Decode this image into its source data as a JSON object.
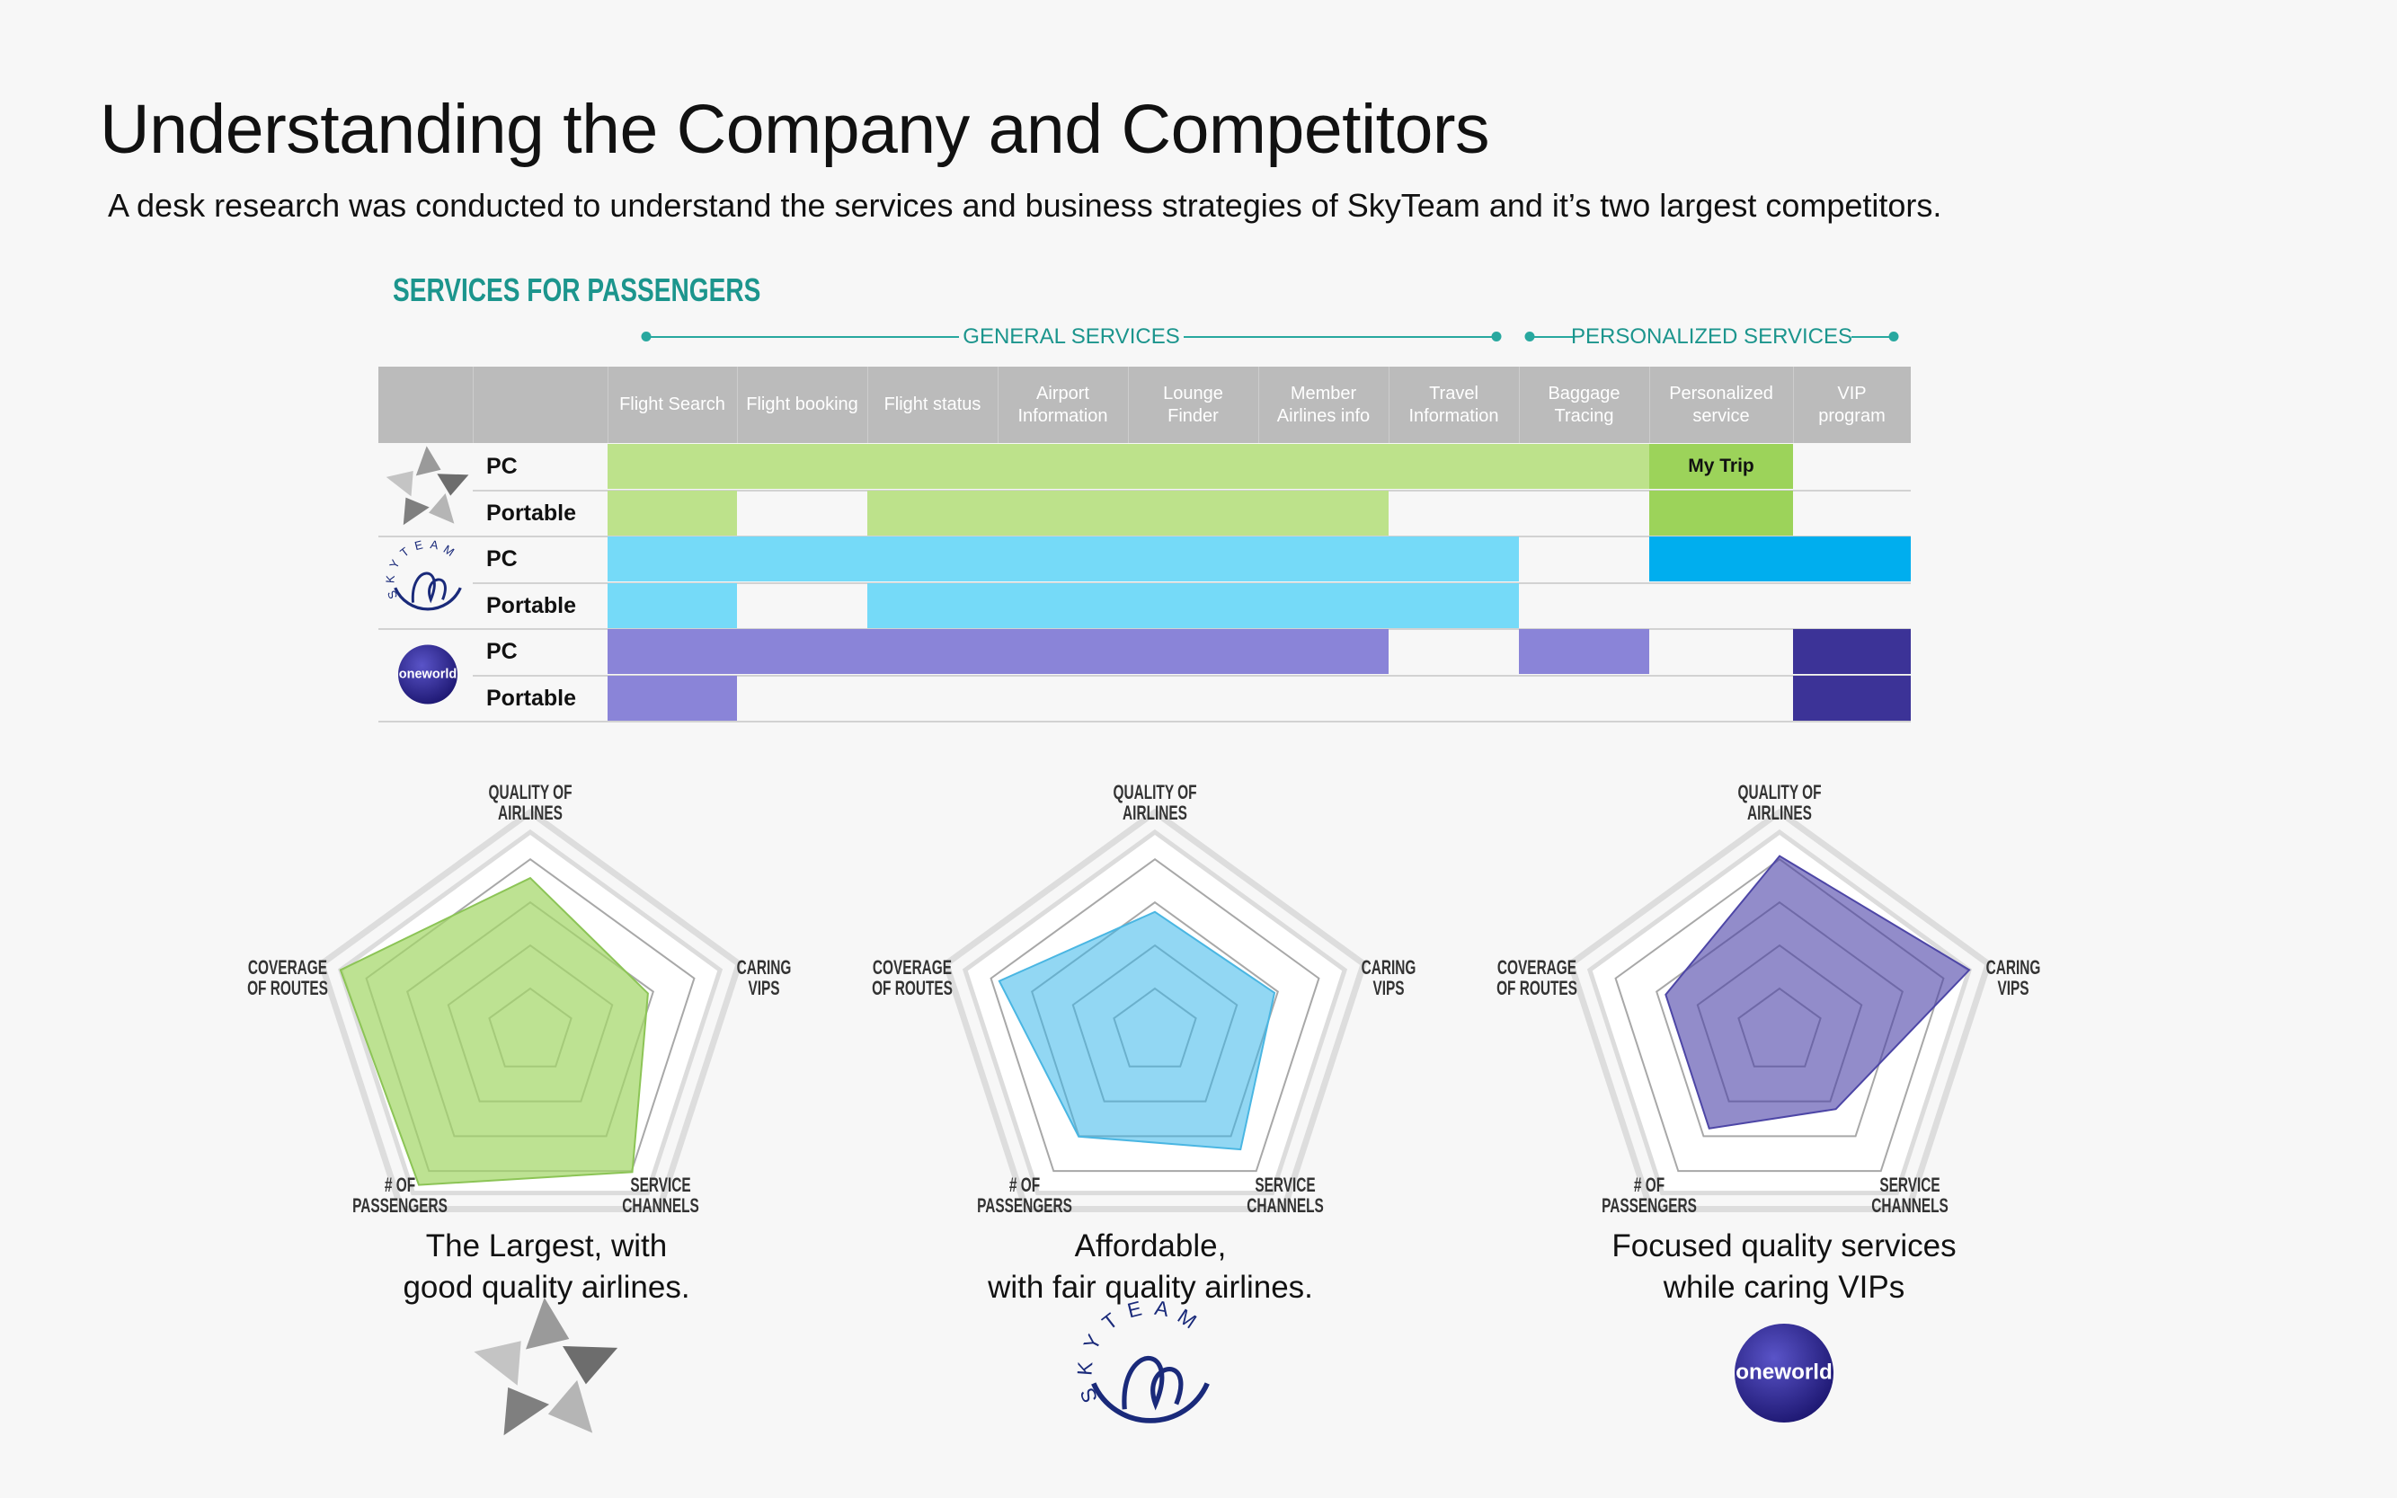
{
  "title": "Understanding the Company and Competitors",
  "subtitle": "A desk research was conducted to understand the services and business strategies of SkyTeam and it’s two largest competitors.",
  "section_heading": "SERVICES FOR PASSENGERS",
  "service_groups": [
    {
      "label": "GENERAL SERVICES",
      "from_col": 0,
      "to_col": 6
    },
    {
      "label": "PERSONALIZED SERVICES",
      "from_col": 7,
      "to_col": 9
    }
  ],
  "colors": {
    "star_alliance": "#bde28b",
    "star_alliance_strong": "#9cd35a",
    "skyteam": "#75daf8",
    "skyteam_strong": "#00aeee",
    "oneworld": "#8a84d8",
    "oneworld_strong": "#3c3397",
    "accent": "#1c958d",
    "header": "#bbbbbb"
  },
  "alliances": [
    {
      "name": "STAR ALLIANCE",
      "logo_icon": "star-alliance-icon",
      "caption": "The Largest, with\ngood quality airlines."
    },
    {
      "name": "SKYTEAM",
      "logo_icon": "skyteam-icon",
      "caption": "Affordable,\nwith fair quality airlines."
    },
    {
      "name": "oneworld",
      "logo_icon": "oneworld-icon",
      "caption": "Focused quality services\nwhile caring VIPs"
    }
  ],
  "chart_data": [
    {
      "type": "table",
      "columns": [
        "Flight Search",
        "Flight booking",
        "Flight status",
        "Airport\nInformation",
        "Lounge\nFinder",
        "Member\nAirlines info",
        "Travel\nInformation",
        "Baggage\nTracing",
        "Personalized\nservice",
        "VIP\nprogram"
      ],
      "rows": [
        {
          "alliance": "STAR ALLIANCE",
          "platform": "PC",
          "cells": [
            1,
            1,
            1,
            1,
            1,
            1,
            1,
            1,
            2,
            0
          ],
          "cell_text": {
            "8": "My Trip"
          }
        },
        {
          "alliance": "STAR ALLIANCE",
          "platform": "Portable",
          "cells": [
            1,
            0,
            1,
            1,
            1,
            1,
            0,
            0,
            2,
            0
          ]
        },
        {
          "alliance": "SKYTEAM",
          "platform": "PC",
          "cells": [
            1,
            1,
            1,
            1,
            1,
            1,
            1,
            0,
            2,
            2
          ]
        },
        {
          "alliance": "SKYTEAM",
          "platform": "Portable",
          "cells": [
            1,
            0,
            1,
            1,
            1,
            1,
            1,
            0,
            0,
            0
          ]
        },
        {
          "alliance": "oneworld",
          "platform": "PC",
          "cells": [
            1,
            1,
            1,
            1,
            1,
            1,
            0,
            1,
            0,
            2
          ]
        },
        {
          "alliance": "oneworld",
          "platform": "Portable",
          "cells": [
            1,
            0,
            0,
            0,
            0,
            0,
            0,
            0,
            0,
            2
          ]
        }
      ]
    },
    {
      "type": "radar",
      "alliance": "STAR ALLIANCE",
      "axes": [
        "QUALITY OF\nAIRLINES",
        "CARING\nVIPS",
        "SERVICE\nCHANNELS",
        "# OF\nPASSENGERS",
        "COVERAGE\nOF ROUTES"
      ],
      "values": [
        0.77,
        0.62,
        0.87,
        0.95,
        1.0
      ],
      "levels": 4,
      "range": [
        0,
        1
      ]
    },
    {
      "type": "radar",
      "alliance": "SKYTEAM",
      "axes": [
        "QUALITY OF\nAIRLINES",
        "CARING\nVIPS",
        "SERVICE\nCHANNELS",
        "# OF\nPASSENGERS",
        "COVERAGE\nOF ROUTES"
      ],
      "values": [
        0.6,
        0.63,
        0.73,
        0.65,
        0.82
      ],
      "levels": 4,
      "range": [
        0,
        1
      ]
    },
    {
      "type": "radar",
      "alliance": "oneworld",
      "axes": [
        "QUALITY OF\nAIRLINES",
        "CARING\nVIPS",
        "SERVICE\nCHANNELS",
        "# OF\nPASSENGERS",
        "COVERAGE\nOF ROUTES"
      ],
      "values": [
        0.88,
        1.0,
        0.48,
        0.6,
        0.6
      ],
      "levels": 4,
      "range": [
        0,
        1
      ]
    }
  ]
}
